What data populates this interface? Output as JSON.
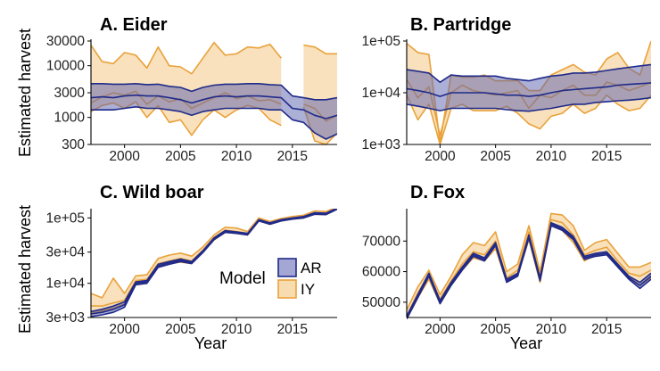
{
  "figure": {
    "ylabel": "Estimated harvest",
    "xlabel": "Year",
    "legend": {
      "title": "Model",
      "items": [
        {
          "name": "AR",
          "fill": "#5a5fae",
          "line": "#1f2a8a"
        },
        {
          "name": "IY",
          "fill": "#f7dcb0",
          "line": "#e9a23b"
        }
      ]
    }
  },
  "chart_data": [
    {
      "panel": "A",
      "title": "A. Eider",
      "type": "area",
      "scale": "log",
      "xlim": [
        1997,
        2019
      ],
      "ylim": [
        300,
        30000
      ],
      "xticks": [
        2000,
        2005,
        2010,
        2015
      ],
      "yticks": [
        300,
        1000,
        3000,
        10000,
        30000
      ],
      "ytick_labels": [
        "300",
        "1000",
        "3000",
        "10000",
        "30000"
      ],
      "series": [
        {
          "name": "IY",
          "x": [
            1997,
            1998,
            1999,
            2000,
            2001,
            2002,
            2003,
            2004,
            2005,
            2006,
            2007,
            2008,
            2009,
            2010,
            2011,
            2012,
            2013,
            2014,
            2016,
            2017,
            2018,
            2019
          ],
          "upper": [
            25000,
            12000,
            11000,
            18000,
            16000,
            9000,
            23000,
            10000,
            9500,
            7000,
            14000,
            28000,
            16000,
            17000,
            23000,
            22000,
            26000,
            14000,
            25000,
            23000,
            17000,
            17000
          ],
          "mid": [
            1900,
            2500,
            3000,
            2700,
            3200,
            1800,
            2600,
            2000,
            2300,
            1500,
            1900,
            2400,
            3000,
            2300,
            2600,
            2100,
            2200,
            1800,
            1800,
            1500,
            850,
            1100
          ],
          "lower": [
            1300,
            1700,
            1900,
            1500,
            2000,
            1000,
            1700,
            800,
            900,
            450,
            900,
            1400,
            1000,
            1400,
            1700,
            1500,
            900,
            700,
            1600,
            350,
            300,
            500
          ]
        },
        {
          "name": "AR",
          "x": [
            1997,
            1998,
            1999,
            2000,
            2001,
            2002,
            2003,
            2004,
            2005,
            2006,
            2007,
            2008,
            2009,
            2010,
            2011,
            2012,
            2013,
            2014,
            2015,
            2016,
            2017,
            2018,
            2019
          ],
          "upper": [
            4500,
            4500,
            4400,
            4400,
            4500,
            4300,
            4400,
            4000,
            3800,
            3200,
            3800,
            4200,
            4400,
            4400,
            4500,
            4500,
            4300,
            4200,
            2600,
            2400,
            2200,
            2200,
            2400
          ],
          "mid": [
            2400,
            2500,
            2400,
            2600,
            2700,
            2600,
            2600,
            2400,
            2200,
            1900,
            2200,
            2500,
            2600,
            2500,
            2600,
            2600,
            2500,
            2400,
            1500,
            1400,
            1100,
            950,
            1100
          ],
          "lower": [
            1400,
            1400,
            1400,
            1500,
            1600,
            1500,
            1500,
            1400,
            1300,
            1100,
            1300,
            1400,
            1500,
            1500,
            1500,
            1500,
            1400,
            1400,
            900,
            800,
            500,
            380,
            480
          ]
        }
      ]
    },
    {
      "panel": "B",
      "title": "B. Partridge",
      "type": "area",
      "scale": "log",
      "xlim": [
        1997,
        2019
      ],
      "ylim": [
        1000,
        100000
      ],
      "xticks": [
        2000,
        2005,
        2010,
        2015
      ],
      "yticks": [
        1000,
        10000,
        100000
      ],
      "ytick_labels": [
        "1e+03",
        "1e+04",
        "1e+05"
      ],
      "series": [
        {
          "name": "IY",
          "x": [
            1997,
            1998,
            1999,
            2000,
            2001,
            2002,
            2003,
            2004,
            2005,
            2006,
            2007,
            2008,
            2009,
            2010,
            2011,
            2012,
            2013,
            2014,
            2015,
            2016,
            2017,
            2018,
            2019
          ],
          "upper": [
            90000,
            60000,
            55000,
            1100,
            22000,
            20000,
            20000,
            22000,
            17000,
            17000,
            17000,
            11000,
            11000,
            22000,
            28000,
            35000,
            25000,
            22000,
            45000,
            60000,
            30000,
            22000,
            100000
          ],
          "mid": [
            18000,
            8000,
            13000,
            1500,
            10000,
            14000,
            11000,
            10000,
            9000,
            10000,
            11000,
            5000,
            9000,
            8000,
            11000,
            14000,
            9000,
            9000,
            16000,
            14000,
            11000,
            13000,
            16000
          ],
          "lower": [
            9000,
            3000,
            6000,
            1000,
            5000,
            6000,
            4500,
            4500,
            4500,
            5500,
            4000,
            2500,
            2000,
            3500,
            4000,
            6000,
            4000,
            5000,
            9000,
            6000,
            4500,
            5000,
            9000
          ]
        },
        {
          "name": "AR",
          "x": [
            1997,
            1998,
            1999,
            2000,
            2001,
            2002,
            2003,
            2004,
            2005,
            2006,
            2007,
            2008,
            2009,
            2010,
            2011,
            2012,
            2013,
            2014,
            2015,
            2016,
            2017,
            2018,
            2019
          ],
          "upper": [
            28000,
            26000,
            24000,
            16000,
            22000,
            21000,
            21000,
            21000,
            21000,
            19000,
            18000,
            17000,
            19000,
            21000,
            22000,
            24000,
            24000,
            25000,
            27000,
            29000,
            31000,
            33000,
            35000
          ],
          "mid": [
            12000,
            11000,
            10000,
            8500,
            10000,
            10000,
            10000,
            10000,
            9500,
            9000,
            9000,
            8500,
            9000,
            10000,
            11000,
            11500,
            12000,
            12500,
            13000,
            14000,
            14500,
            15000,
            15500
          ],
          "lower": [
            6000,
            5500,
            5000,
            4500,
            5000,
            5000,
            5000,
            5000,
            5000,
            4700,
            4500,
            4400,
            4700,
            5000,
            5500,
            6000,
            6000,
            6500,
            6700,
            7000,
            7200,
            7500,
            8000
          ]
        }
      ]
    },
    {
      "panel": "C",
      "title": "C. Wild boar",
      "type": "area",
      "scale": "log",
      "xlim": [
        1997,
        2019
      ],
      "ylim": [
        3000,
        130000
      ],
      "xticks": [
        2000,
        2005,
        2010,
        2015
      ],
      "yticks": [
        3000,
        10000,
        30000,
        100000
      ],
      "ytick_labels": [
        "3e+03",
        "1e+04",
        "3e+04",
        "1e+05"
      ],
      "series": [
        {
          "name": "IY",
          "x": [
            1997,
            1998,
            1999,
            2000,
            2001,
            2002,
            2003,
            2004,
            2005,
            2006,
            2007,
            2008,
            2009,
            2010,
            2011,
            2012,
            2013,
            2014,
            2015,
            2016,
            2017,
            2018,
            2019
          ],
          "upper": [
            7000,
            6000,
            12000,
            7000,
            13000,
            13500,
            24000,
            27000,
            29000,
            26000,
            36000,
            55000,
            72000,
            70000,
            62000,
            100000,
            88000,
            98000,
            105000,
            110000,
            128000,
            125000,
            148000
          ],
          "mid": [
            4500,
            4500,
            5000,
            5500,
            11000,
            11500,
            20000,
            22000,
            24000,
            22000,
            32000,
            50000,
            65000,
            62000,
            58000,
            95000,
            84000,
            94000,
            100000,
            105000,
            120000,
            118000,
            142000
          ],
          "lower": [
            3500,
            3800,
            4200,
            4800,
            9500,
            10000,
            18000,
            20000,
            21000,
            20000,
            30000,
            46000,
            60000,
            58000,
            55000,
            90000,
            80000,
            90000,
            96000,
            100000,
            114000,
            112000,
            136000
          ]
        },
        {
          "name": "AR",
          "x": [
            1997,
            1998,
            1999,
            2000,
            2001,
            2002,
            2003,
            2004,
            2005,
            2006,
            2007,
            2008,
            2009,
            2010,
            2011,
            2012,
            2013,
            2014,
            2015,
            2016,
            2017,
            2018,
            2019
          ],
          "upper": [
            3700,
            4000,
            4500,
            5200,
            10500,
            11000,
            19500,
            21500,
            23500,
            21500,
            31500,
            49500,
            64000,
            61000,
            58000,
            94000,
            84000,
            94000,
            100000,
            105000,
            120000,
            118000,
            142000
          ],
          "mid": [
            3400,
            3600,
            4000,
            4700,
            10000,
            10500,
            18500,
            20500,
            22500,
            20800,
            30500,
            48000,
            62000,
            59500,
            56500,
            92000,
            82000,
            92000,
            98000,
            103000,
            117000,
            115000,
            139000
          ],
          "lower": [
            3100,
            3300,
            3600,
            4300,
            9500,
            10000,
            17500,
            19500,
            21500,
            20000,
            29500,
            46500,
            60000,
            58000,
            55000,
            90000,
            80000,
            90000,
            96000,
            100000,
            114000,
            112000,
            136000
          ]
        }
      ]
    },
    {
      "panel": "D",
      "title": "D. Fox",
      "type": "area",
      "scale": "linear",
      "xlim": [
        1997,
        2019
      ],
      "ylim": [
        45000,
        80000
      ],
      "xticks": [
        2000,
        2005,
        2010,
        2015
      ],
      "yticks": [
        50000,
        60000,
        70000
      ],
      "ytick_labels": [
        "50000",
        "60000",
        "70000"
      ],
      "series": [
        {
          "name": "IY",
          "x": [
            1997,
            1998,
            1999,
            2000,
            2001,
            2002,
            2003,
            2004,
            2005,
            2006,
            2007,
            2008,
            2009,
            2010,
            2011,
            2012,
            2013,
            2014,
            2015,
            2016,
            2017,
            2018,
            2019
          ],
          "upper": [
            47500,
            55000,
            60500,
            52500,
            58500,
            65500,
            69500,
            68500,
            73000,
            60000,
            62500,
            75000,
            60000,
            79000,
            78500,
            75000,
            67000,
            69500,
            70500,
            66000,
            61500,
            61500,
            63000
          ],
          "mid": [
            45500,
            53000,
            59000,
            51000,
            57000,
            62500,
            66500,
            65500,
            70000,
            58000,
            60500,
            73000,
            58500,
            77000,
            76000,
            72000,
            65500,
            67000,
            68000,
            63500,
            59500,
            58500,
            60500
          ],
          "lower": [
            44500,
            51500,
            57500,
            49500,
            55500,
            60500,
            64500,
            63500,
            67500,
            56500,
            59000,
            70500,
            56500,
            75000,
            73500,
            69500,
            63500,
            65500,
            66000,
            61500,
            57500,
            55500,
            58000
          ]
        },
        {
          "name": "AR",
          "x": [
            1997,
            1998,
            1999,
            2000,
            2001,
            2002,
            2003,
            2004,
            2005,
            2006,
            2007,
            2008,
            2009,
            2010,
            2011,
            2012,
            2013,
            2014,
            2015,
            2016,
            2017,
            2018,
            2019
          ],
          "upper": [
            45500,
            52500,
            59500,
            50500,
            56500,
            61500,
            66000,
            64500,
            69500,
            57500,
            59500,
            72000,
            58000,
            76000,
            74500,
            71500,
            65000,
            66000,
            66500,
            62500,
            58500,
            56500,
            59500
          ],
          "mid": [
            45000,
            52000,
            59000,
            50000,
            56000,
            61000,
            65500,
            64000,
            69000,
            57000,
            59000,
            71500,
            57500,
            75500,
            74000,
            71000,
            64500,
            65500,
            66000,
            62000,
            58000,
            55500,
            58500
          ],
          "lower": [
            44500,
            51500,
            58500,
            49500,
            55500,
            60500,
            65000,
            63500,
            68500,
            56500,
            58500,
            71000,
            57000,
            75000,
            73500,
            70500,
            64000,
            65000,
            65500,
            61500,
            57500,
            54500,
            57500
          ]
        }
      ]
    }
  ]
}
